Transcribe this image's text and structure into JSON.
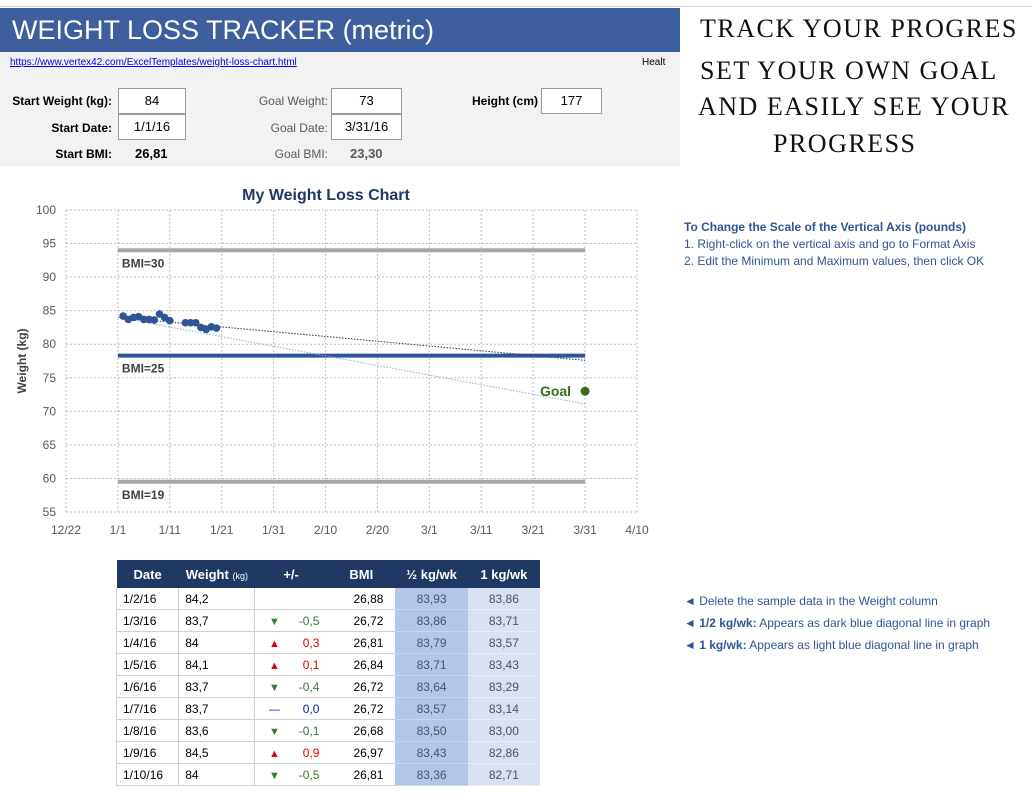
{
  "header": {
    "title": "WEIGHT LOSS TRACKER (metric)",
    "link": "https://www.vertex42.com/ExcelTemplates/weight-loss-chart.html",
    "cut_text": "Healt"
  },
  "inputs": {
    "start_weight": {
      "label": "Start Weight (kg):",
      "value": 84
    },
    "goal_weight": {
      "label": "Goal Weight:",
      "value": 73
    },
    "height": {
      "label": "Height (cm)",
      "value": 177
    },
    "start_date": {
      "label": "Start Date:",
      "value": "1/1/16"
    },
    "goal_date": {
      "label": "Goal Date:",
      "value": "3/31/16"
    },
    "start_bmi": {
      "label": "Start BMI:",
      "value": "26,81"
    },
    "goal_bmi": {
      "label": "Goal BMI:",
      "value": "23,30"
    }
  },
  "promo": [
    "TRACK YOUR PROGRES",
    "SET YOUR OWN GOAL",
    "AND EASILY SEE YOUR",
    "PROGRESS"
  ],
  "instructions": {
    "title": "To Change the Scale of the Vertical Axis (pounds)",
    "steps": [
      "1. Right-click on the vertical axis and go to Format Axis",
      "2. Edit the Minimum and Maximum values, then click OK"
    ]
  },
  "notes": [
    {
      "text": "◄ Delete the sample data in the Weight column"
    },
    {
      "bold": "◄ 1/2 kg/wk:",
      "text": "Appears as dark blue diagonal line in graph"
    },
    {
      "bold": "◄ 1 kg/wk:",
      "text": "Appears as light blue diagonal line in graph"
    }
  ],
  "table": {
    "columns": [
      "Date",
      "Weight",
      "+/-",
      "BMI",
      "½ kg/wk",
      "1 kg/wk"
    ],
    "weight_unit": "(kg)",
    "rows": [
      {
        "date": "1/2/16",
        "weight": "84,2",
        "bmi": "26,88",
        "half": "83,93",
        "one": "83,86"
      },
      {
        "date": "1/3/16",
        "weight": "83,7",
        "trend": "▼",
        "change": "-0,5",
        "bmi": "26,72",
        "half": "83,86",
        "one": "83,71"
      },
      {
        "date": "1/4/16",
        "weight": "84",
        "trend": "▲",
        "change": "0,3",
        "bmi": "26,81",
        "half": "83,79",
        "one": "83,57"
      },
      {
        "date": "1/5/16",
        "weight": "84,1",
        "trend": "▲",
        "change": "0,1",
        "bmi": "26,84",
        "half": "83,71",
        "one": "83,43"
      },
      {
        "date": "1/6/16",
        "weight": "83,7",
        "trend": "▼",
        "change": "-0,4",
        "bmi": "26,72",
        "half": "83,64",
        "one": "83,29"
      },
      {
        "date": "1/7/16",
        "weight": "83,7",
        "trend": "—",
        "change": "0,0",
        "bmi": "26,72",
        "half": "83,57",
        "one": "83,14"
      },
      {
        "date": "1/8/16",
        "weight": "83,6",
        "trend": "▼",
        "change": "-0,1",
        "bmi": "26,68",
        "half": "83,50",
        "one": "83,00"
      },
      {
        "date": "1/9/16",
        "weight": "84,5",
        "trend": "▲",
        "change": "0,9",
        "bmi": "26,97",
        "half": "83,43",
        "one": "82,86"
      },
      {
        "date": "1/10/16",
        "weight": "84",
        "trend": "▼",
        "change": "-0,5",
        "bmi": "26,81",
        "half": "83,36",
        "one": "82,71"
      }
    ]
  },
  "chart_data": {
    "type": "scatter",
    "title": "My Weight Loss Chart",
    "y_label": "Weight (kg)",
    "xlim": [
      "12/22",
      "4/10"
    ],
    "xticks": [
      "12/22",
      "1/1",
      "1/11",
      "1/21",
      "1/31",
      "2/10",
      "2/20",
      "3/1",
      "3/11",
      "3/21",
      "3/31",
      "4/10"
    ],
    "ylim": [
      55,
      100
    ],
    "yticks": [
      55,
      60,
      65,
      70,
      75,
      80,
      85,
      90,
      95,
      100
    ],
    "grid": true,
    "series": [
      {
        "name": "Weight",
        "color": "#2f5597",
        "x": [
          "1/2",
          "1/3",
          "1/4",
          "1/5",
          "1/6",
          "1/7",
          "1/8",
          "1/9",
          "1/10",
          "1/11",
          "1/14",
          "1/15",
          "1/16",
          "1/17",
          "1/18",
          "1/19",
          "1/20"
        ],
        "values": [
          84.2,
          83.7,
          84,
          84.1,
          83.7,
          83.7,
          83.6,
          84.5,
          84,
          83.5,
          83.2,
          83.2,
          83.2,
          82.5,
          82.2,
          82.6,
          82.4
        ]
      }
    ],
    "reference_span": [
      "1/1",
      "3/31"
    ],
    "reference_lines": [
      {
        "label": "BMI=30",
        "value": 94,
        "color": "#a6a6a6"
      },
      {
        "label": "BMI=25",
        "value": 78.3,
        "color": "#2f5597"
      },
      {
        "label": "BMI=19",
        "value": 59.5,
        "color": "#a6a6a6"
      }
    ],
    "trend_lines": [
      {
        "x": [
          "1/1",
          "3/31"
        ],
        "values": [
          84,
          77.6
        ],
        "color": "#1f3864"
      },
      {
        "x": [
          "1/1",
          "3/31"
        ],
        "values": [
          84,
          71.1
        ],
        "color": "#8eaadb"
      }
    ],
    "goal": {
      "label": "Goal",
      "x": "3/31",
      "value": 73,
      "color": "#3a6b1f"
    }
  }
}
